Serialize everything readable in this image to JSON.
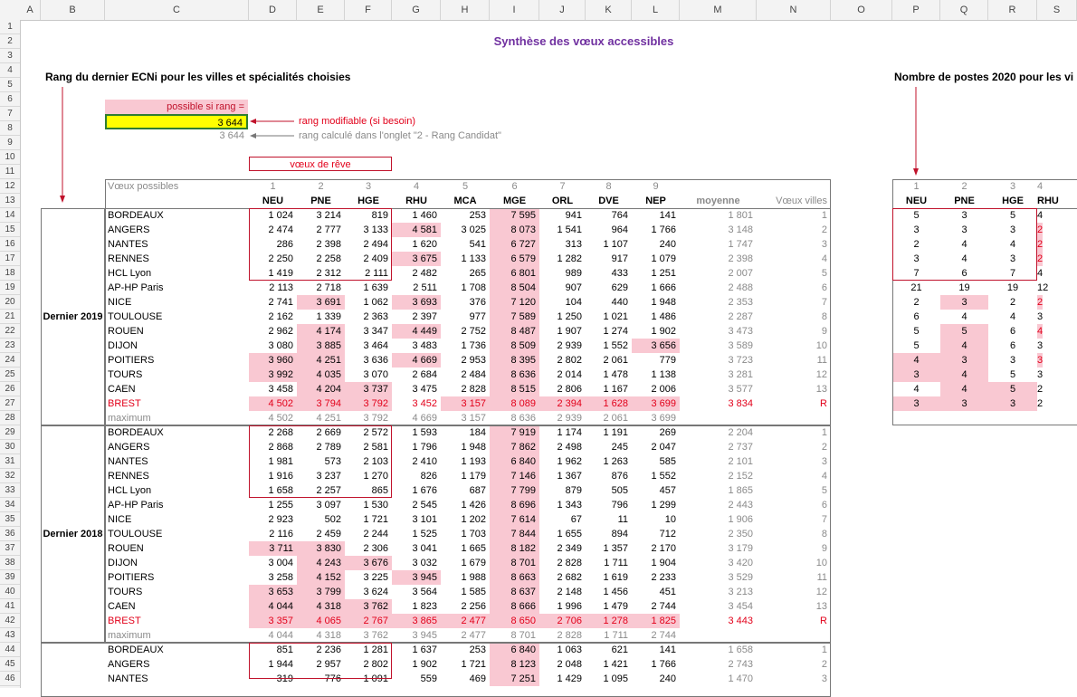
{
  "columns": [
    "A",
    "B",
    "C",
    "D",
    "E",
    "F",
    "G",
    "H",
    "I",
    "J",
    "K",
    "L",
    "M",
    "N",
    "O",
    "P",
    "Q",
    "R",
    "S"
  ],
  "row_numbers": [
    "1",
    "2",
    "3",
    "4",
    "5",
    "6",
    "7",
    "8",
    "9",
    "10",
    "11",
    "12",
    "13",
    "14",
    "15",
    "16",
    "17",
    "18",
    "19",
    "20",
    "21",
    "22",
    "23",
    "24",
    "25",
    "26",
    "27",
    "28",
    "29",
    "30",
    "31",
    "32",
    "33",
    "34",
    "35",
    "36",
    "37",
    "38",
    "39",
    "40",
    "41",
    "42",
    "43",
    "44",
    "45",
    "46"
  ],
  "title": "Synthèse des vœux accessibles",
  "left_heading": "Rang du dernier ECNi pour les villes et spécialités choisies",
  "right_heading": "Nombre de postes 2020 pour les vi",
  "possible_label": "possible si rang  =",
  "rank_value": "3 644",
  "rank_note": "rang modifiable (si besoin)",
  "calc_value": "3 644",
  "calc_note": "rang calculé dans l'onglet \"2 - Rang Candidat\"",
  "dream_label": "vœux de rêve",
  "voeux_label": "Vœux possibles",
  "spec_nums": [
    "1",
    "2",
    "3",
    "4",
    "5",
    "6",
    "7",
    "8",
    "9"
  ],
  "specs": [
    "NEU",
    "PNE",
    "HGE",
    "RHU",
    "MCA",
    "MGE",
    "ORL",
    "DVE",
    "NEP"
  ],
  "moyenne_label": "moyenne",
  "voeux_villes_label": "Vœux villes",
  "maximum_label": "maximum",
  "group_2019": "Dernier 2019",
  "group_2018": "Dernier 2018",
  "colors": {
    "pink": "#f9c8d2",
    "yellow": "#ffff00",
    "red": "#e2001a",
    "title": "#7030a0"
  },
  "block2019": [
    {
      "city": "BORDEAUX",
      "v": [
        "1 024",
        "3 214",
        "819",
        "1 460",
        "253",
        "7 595",
        "941",
        "764",
        "141"
      ],
      "p": [
        0,
        0,
        0,
        0,
        0,
        1,
        0,
        0,
        0
      ],
      "moy": "1 801",
      "n": "1"
    },
    {
      "city": "ANGERS",
      "v": [
        "2 474",
        "2 777",
        "3 133",
        "4 581",
        "3 025",
        "8 073",
        "1 541",
        "964",
        "1 766"
      ],
      "p": [
        0,
        0,
        0,
        1,
        0,
        1,
        0,
        0,
        0
      ],
      "moy": "3 148",
      "n": "2"
    },
    {
      "city": "NANTES",
      "v": [
        "286",
        "2 398",
        "2 494",
        "1 620",
        "541",
        "6 727",
        "313",
        "1 107",
        "240"
      ],
      "p": [
        0,
        0,
        0,
        0,
        0,
        1,
        0,
        0,
        0
      ],
      "moy": "1 747",
      "n": "3"
    },
    {
      "city": "RENNES",
      "v": [
        "2 250",
        "2 258",
        "2 409",
        "3 675",
        "1 133",
        "6 579",
        "1 282",
        "917",
        "1 079"
      ],
      "p": [
        0,
        0,
        0,
        1,
        0,
        1,
        0,
        0,
        0
      ],
      "moy": "2 398",
      "n": "4"
    },
    {
      "city": "HCL Lyon",
      "v": [
        "1 419",
        "2 312",
        "2 111",
        "2 482",
        "265",
        "6 801",
        "989",
        "433",
        "1 251"
      ],
      "p": [
        0,
        0,
        0,
        0,
        0,
        1,
        0,
        0,
        0
      ],
      "moy": "2 007",
      "n": "5"
    },
    {
      "city": "AP-HP Paris",
      "v": [
        "2 113",
        "2 718",
        "1 639",
        "2 511",
        "1 708",
        "8 504",
        "907",
        "629",
        "1 666"
      ],
      "p": [
        0,
        0,
        0,
        0,
        0,
        1,
        0,
        0,
        0
      ],
      "moy": "2 488",
      "n": "6"
    },
    {
      "city": "NICE",
      "v": [
        "2 741",
        "3 691",
        "1 062",
        "3 693",
        "376",
        "7 120",
        "104",
        "440",
        "1 948"
      ],
      "p": [
        0,
        1,
        0,
        1,
        0,
        1,
        0,
        0,
        0
      ],
      "moy": "2 353",
      "n": "7"
    },
    {
      "city": "TOULOUSE",
      "v": [
        "2 162",
        "1 339",
        "2 363",
        "2 397",
        "977",
        "7 589",
        "1 250",
        "1 021",
        "1 486"
      ],
      "p": [
        0,
        0,
        0,
        0,
        0,
        1,
        0,
        0,
        0
      ],
      "moy": "2 287",
      "n": "8"
    },
    {
      "city": "ROUEN",
      "v": [
        "2 962",
        "4 174",
        "3 347",
        "4 449",
        "2 752",
        "8 487",
        "1 907",
        "1 274",
        "1 902"
      ],
      "p": [
        0,
        1,
        0,
        1,
        0,
        1,
        0,
        0,
        0
      ],
      "moy": "3 473",
      "n": "9"
    },
    {
      "city": "DIJON",
      "v": [
        "3 080",
        "3 885",
        "3 464",
        "3 483",
        "1 736",
        "8 509",
        "2 939",
        "1 552",
        "3 656"
      ],
      "p": [
        0,
        1,
        0,
        0,
        0,
        1,
        0,
        0,
        1
      ],
      "moy": "3 589",
      "n": "10"
    },
    {
      "city": "POITIERS",
      "v": [
        "3 960",
        "4 251",
        "3 636",
        "4 669",
        "2 953",
        "8 395",
        "2 802",
        "2 061",
        "779"
      ],
      "p": [
        1,
        1,
        0,
        1,
        0,
        1,
        0,
        0,
        0
      ],
      "moy": "3 723",
      "n": "11"
    },
    {
      "city": "TOURS",
      "v": [
        "3 992",
        "4 035",
        "3 070",
        "2 684",
        "2 484",
        "8 636",
        "2 014",
        "1 478",
        "1 138"
      ],
      "p": [
        1,
        1,
        0,
        0,
        0,
        1,
        0,
        0,
        0
      ],
      "moy": "3 281",
      "n": "12"
    },
    {
      "city": "CAEN",
      "v": [
        "3 458",
        "4 204",
        "3 737",
        "3 475",
        "2 828",
        "8 515",
        "2 806",
        "1 167",
        "2 006"
      ],
      "p": [
        0,
        1,
        1,
        0,
        0,
        1,
        0,
        0,
        0
      ],
      "moy": "3 577",
      "n": "13"
    },
    {
      "city": "BREST",
      "v": [
        "4 502",
        "3 794",
        "3 792",
        "3 452",
        "3 157",
        "8 089",
        "2 394",
        "1 628",
        "3 699"
      ],
      "p": [
        1,
        1,
        1,
        0,
        1,
        1,
        1,
        1,
        1
      ],
      "moy": "3 834",
      "n": "R",
      "red": true
    }
  ],
  "max2019": [
    "4 502",
    "4 251",
    "3 792",
    "4 669",
    "3 157",
    "8 636",
    "2 939",
    "2 061",
    "3 699"
  ],
  "block2018": [
    {
      "city": "BORDEAUX",
      "v": [
        "2 268",
        "2 669",
        "2 572",
        "1 593",
        "184",
        "7 919",
        "1 174",
        "1 191",
        "269"
      ],
      "p": [
        0,
        0,
        0,
        0,
        0,
        1,
        0,
        0,
        0
      ],
      "moy": "2 204",
      "n": "1"
    },
    {
      "city": "ANGERS",
      "v": [
        "2 868",
        "2 789",
        "2 581",
        "1 796",
        "1 948",
        "7 862",
        "2 498",
        "245",
        "2 047"
      ],
      "p": [
        0,
        0,
        0,
        0,
        0,
        1,
        0,
        0,
        0
      ],
      "moy": "2 737",
      "n": "2"
    },
    {
      "city": "NANTES",
      "v": [
        "1 981",
        "573",
        "2 103",
        "2 410",
        "1 193",
        "6 840",
        "1 962",
        "1 263",
        "585"
      ],
      "p": [
        0,
        0,
        0,
        0,
        0,
        1,
        0,
        0,
        0
      ],
      "moy": "2 101",
      "n": "3"
    },
    {
      "city": "RENNES",
      "v": [
        "1 916",
        "3 237",
        "1 270",
        "826",
        "1 179",
        "7 146",
        "1 367",
        "876",
        "1 552"
      ],
      "p": [
        0,
        0,
        0,
        0,
        0,
        1,
        0,
        0,
        0
      ],
      "moy": "2 152",
      "n": "4"
    },
    {
      "city": "HCL Lyon",
      "v": [
        "1 658",
        "2 257",
        "865",
        "1 676",
        "687",
        "7 799",
        "879",
        "505",
        "457"
      ],
      "p": [
        0,
        0,
        0,
        0,
        0,
        1,
        0,
        0,
        0
      ],
      "moy": "1 865",
      "n": "5"
    },
    {
      "city": "AP-HP Paris",
      "v": [
        "1 255",
        "3 097",
        "1 530",
        "2 545",
        "1 426",
        "8 696",
        "1 343",
        "796",
        "1 299"
      ],
      "p": [
        0,
        0,
        0,
        0,
        0,
        1,
        0,
        0,
        0
      ],
      "moy": "2 443",
      "n": "6"
    },
    {
      "city": "NICE",
      "v": [
        "2 923",
        "502",
        "1 721",
        "3 101",
        "1 202",
        "7 614",
        "67",
        "11",
        "10"
      ],
      "p": [
        0,
        0,
        0,
        0,
        0,
        1,
        0,
        0,
        0
      ],
      "moy": "1 906",
      "n": "7"
    },
    {
      "city": "TOULOUSE",
      "v": [
        "2 116",
        "2 459",
        "2 244",
        "1 525",
        "1 703",
        "7 844",
        "1 655",
        "894",
        "712"
      ],
      "p": [
        0,
        0,
        0,
        0,
        0,
        1,
        0,
        0,
        0
      ],
      "moy": "2 350",
      "n": "8"
    },
    {
      "city": "ROUEN",
      "v": [
        "3 711",
        "3 830",
        "2 306",
        "3 041",
        "1 665",
        "8 182",
        "2 349",
        "1 357",
        "2 170"
      ],
      "p": [
        1,
        1,
        0,
        0,
        0,
        1,
        0,
        0,
        0
      ],
      "moy": "3 179",
      "n": "9"
    },
    {
      "city": "DIJON",
      "v": [
        "3 004",
        "4 243",
        "3 676",
        "3 032",
        "1 679",
        "8 701",
        "2 828",
        "1 711",
        "1 904"
      ],
      "p": [
        0,
        1,
        1,
        0,
        0,
        1,
        0,
        0,
        0
      ],
      "moy": "3 420",
      "n": "10"
    },
    {
      "city": "POITIERS",
      "v": [
        "3 258",
        "4 152",
        "3 225",
        "3 945",
        "1 988",
        "8 663",
        "2 682",
        "1 619",
        "2 233"
      ],
      "p": [
        0,
        1,
        0,
        1,
        0,
        1,
        0,
        0,
        0
      ],
      "moy": "3 529",
      "n": "11"
    },
    {
      "city": "TOURS",
      "v": [
        "3 653",
        "3 799",
        "3 624",
        "3 564",
        "1 585",
        "8 637",
        "2 148",
        "1 456",
        "451"
      ],
      "p": [
        1,
        1,
        0,
        0,
        0,
        1,
        0,
        0,
        0
      ],
      "moy": "3 213",
      "n": "12"
    },
    {
      "city": "CAEN",
      "v": [
        "4 044",
        "4 318",
        "3 762",
        "1 823",
        "2 256",
        "8 666",
        "1 996",
        "1 479",
        "2 744"
      ],
      "p": [
        1,
        1,
        1,
        0,
        0,
        1,
        0,
        0,
        0
      ],
      "moy": "3 454",
      "n": "13"
    },
    {
      "city": "BREST",
      "v": [
        "3 357",
        "4 065",
        "2 767",
        "3 865",
        "2 477",
        "8 650",
        "2 706",
        "1 278",
        "1 825"
      ],
      "p": [
        1,
        1,
        1,
        1,
        1,
        1,
        1,
        1,
        1
      ],
      "moy": "3 443",
      "n": "R",
      "red": true
    }
  ],
  "max2018": [
    "4 044",
    "4 318",
    "3 762",
    "3 945",
    "2 477",
    "8 701",
    "2 828",
    "1 711",
    "2 744"
  ],
  "block2017": [
    {
      "city": "BORDEAUX",
      "v": [
        "851",
        "2 236",
        "1 281",
        "1 637",
        "253",
        "6 840",
        "1 063",
        "621",
        "141"
      ],
      "p": [
        0,
        0,
        0,
        0,
        0,
        1,
        0,
        0,
        0
      ],
      "moy": "1 658",
      "n": "1"
    },
    {
      "city": "ANGERS",
      "v": [
        "1 944",
        "2 957",
        "2 802",
        "1 902",
        "1 721",
        "8 123",
        "2 048",
        "1 421",
        "1 766"
      ],
      "p": [
        0,
        0,
        0,
        0,
        0,
        1,
        0,
        0,
        0
      ],
      "moy": "2 743",
      "n": "2"
    },
    {
      "city": "NANTES",
      "v": [
        "319",
        "776",
        "1 091",
        "559",
        "469",
        "7 251",
        "1 429",
        "1 095",
        "240"
      ],
      "p": [
        0,
        0,
        0,
        0,
        0,
        1,
        0,
        0,
        0
      ],
      "moy": "1 470",
      "n": "3"
    }
  ],
  "right_nums": [
    "1",
    "2",
    "3",
    "4"
  ],
  "right_specs": [
    "NEU",
    "PNE",
    "HGE",
    "RHU"
  ],
  "postes": [
    {
      "v": [
        "5",
        "3",
        "5",
        "4"
      ],
      "p": [
        0,
        0,
        0,
        0
      ]
    },
    {
      "v": [
        "3",
        "3",
        "3",
        "2"
      ],
      "p": [
        0,
        0,
        0,
        1
      ]
    },
    {
      "v": [
        "2",
        "4",
        "4",
        "2"
      ],
      "p": [
        0,
        0,
        0,
        1
      ]
    },
    {
      "v": [
        "3",
        "4",
        "3",
        "2"
      ],
      "p": [
        0,
        0,
        0,
        1
      ]
    },
    {
      "v": [
        "7",
        "6",
        "7",
        "4"
      ],
      "p": [
        0,
        0,
        0,
        0
      ]
    },
    {
      "v": [
        "21",
        "19",
        "19",
        "12"
      ],
      "p": [
        0,
        0,
        0,
        0
      ]
    },
    {
      "v": [
        "2",
        "3",
        "2",
        "2"
      ],
      "p": [
        0,
        1,
        0,
        1
      ]
    },
    {
      "v": [
        "6",
        "4",
        "4",
        "3"
      ],
      "p": [
        0,
        0,
        0,
        0
      ]
    },
    {
      "v": [
        "5",
        "5",
        "6",
        "4"
      ],
      "p": [
        0,
        1,
        0,
        1
      ]
    },
    {
      "v": [
        "5",
        "4",
        "6",
        "3"
      ],
      "p": [
        0,
        1,
        0,
        0
      ]
    },
    {
      "v": [
        "4",
        "3",
        "3",
        "3"
      ],
      "p": [
        1,
        1,
        0,
        1
      ]
    },
    {
      "v": [
        "3",
        "4",
        "5",
        "3"
      ],
      "p": [
        1,
        1,
        0,
        0
      ]
    },
    {
      "v": [
        "4",
        "4",
        "5",
        "2"
      ],
      "p": [
        0,
        1,
        1,
        0
      ]
    },
    {
      "v": [
        "3",
        "3",
        "3",
        "2"
      ],
      "p": [
        1,
        1,
        1,
        0
      ]
    }
  ]
}
